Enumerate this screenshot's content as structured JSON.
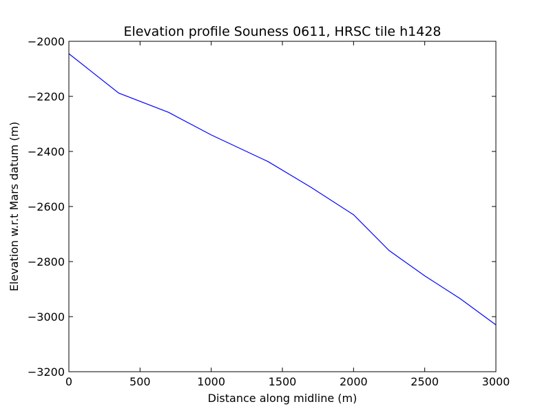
{
  "chart_data": {
    "type": "line",
    "title": "Elevation profile Souness 0611, HRSC tile h1428",
    "xlabel": "Distance along midline (m)",
    "ylabel": "Elevation w.r.t Mars datum (m)",
    "xlim": [
      0,
      3000
    ],
    "ylim": [
      -3200,
      -2000
    ],
    "x_ticks": [
      0,
      500,
      1000,
      1500,
      2000,
      2500,
      3000
    ],
    "y_ticks": [
      -3200,
      -3000,
      -2800,
      -2600,
      -2400,
      -2200,
      -2000
    ],
    "x_tick_labels": [
      "0",
      "500",
      "1000",
      "1500",
      "2000",
      "2500",
      "3000"
    ],
    "y_tick_labels": [
      "−3200",
      "−3000",
      "−2800",
      "−2600",
      "−2400",
      "−2200",
      "−2000"
    ],
    "grid": false,
    "series": [
      {
        "name": "elevation profile",
        "color": "#0000ff",
        "x": [
          0,
          350,
          700,
          1000,
          1400,
          1700,
          2000,
          2250,
          2500,
          2750,
          3000
        ],
        "y": [
          -2045,
          -2188,
          -2258,
          -2340,
          -2437,
          -2530,
          -2630,
          -2760,
          -2852,
          -2935,
          -3030
        ]
      }
    ]
  }
}
